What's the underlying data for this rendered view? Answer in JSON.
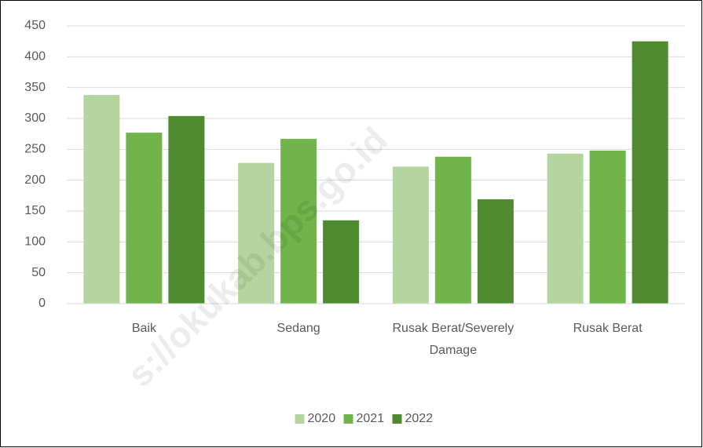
{
  "chart_data": {
    "type": "bar",
    "categories": [
      "Baik",
      "Sedang",
      "Rusak Berat/Severely Damage",
      "Rusak Berat"
    ],
    "series": [
      {
        "name": "2020",
        "color": "#b4d5a0",
        "values": [
          338,
          228,
          222,
          243
        ]
      },
      {
        "name": "2021",
        "color": "#70b44a",
        "values": [
          277,
          267,
          238,
          248
        ]
      },
      {
        "name": "2022",
        "color": "#4f8a30",
        "values": [
          304,
          135,
          169,
          425
        ]
      }
    ],
    "ylim": [
      0,
      450
    ],
    "yticks": [
      0,
      50,
      100,
      150,
      200,
      250,
      300,
      350,
      400,
      450
    ],
    "grid": true,
    "legend": "bottom",
    "watermark": "s://okukab.bps.go.id"
  }
}
